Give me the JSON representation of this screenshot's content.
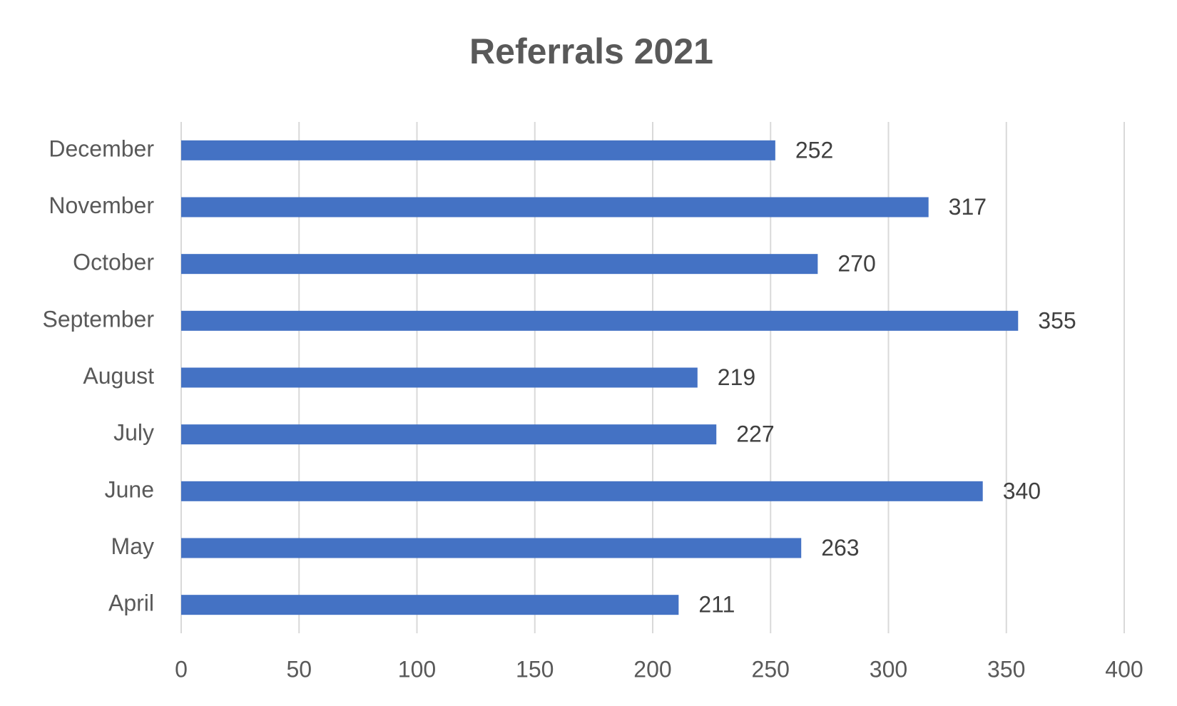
{
  "chart_data": {
    "type": "hbar",
    "title": "Referrals 2021",
    "categories": [
      "April",
      "May",
      "June",
      "July",
      "August",
      "September",
      "October",
      "November",
      "December"
    ],
    "values": [
      211,
      263,
      340,
      227,
      219,
      355,
      270,
      317,
      252
    ],
    "color": "#4472c4",
    "xlim": [
      0,
      400
    ],
    "xticks": [
      0,
      50,
      100,
      150,
      200,
      250,
      300,
      350,
      400
    ],
    "grid": true
  }
}
